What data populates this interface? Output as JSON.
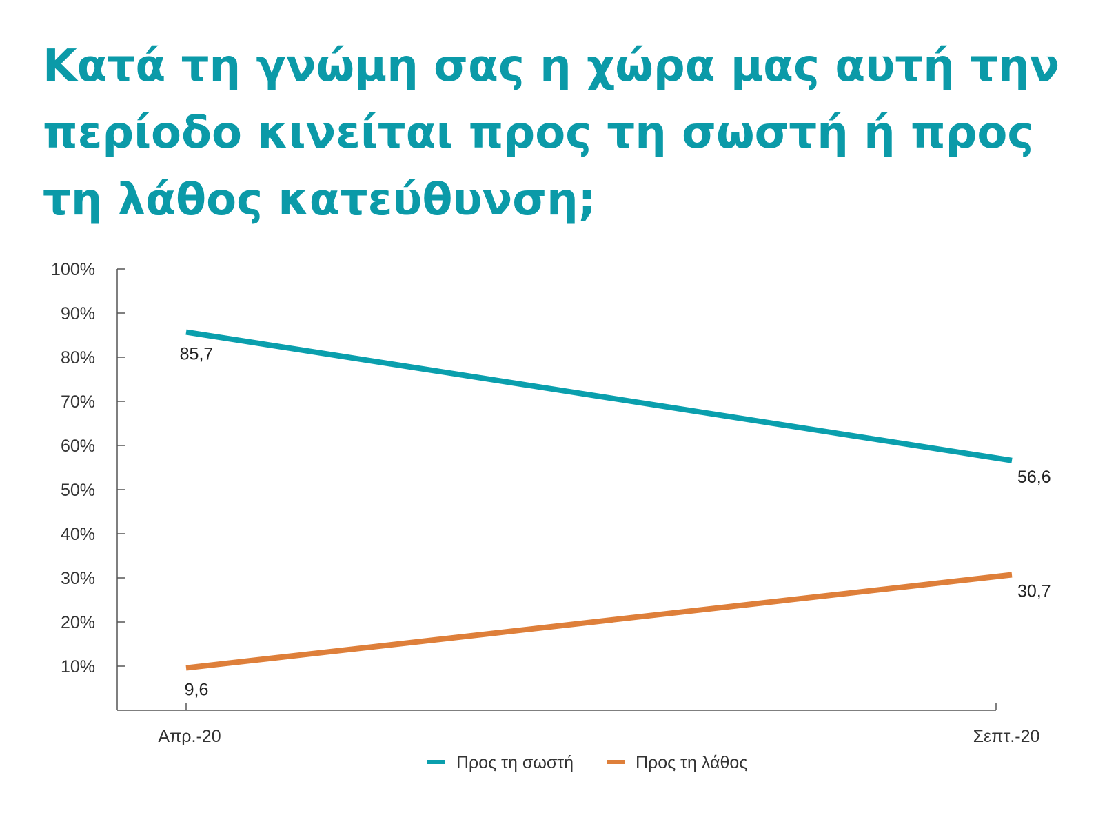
{
  "title": "Κατά τη γνώμη σας η χώρα μας αυτή την περίοδο κινείται προς τη σωστή ή προς τη λάθος κατεύθυνση;",
  "chart_data": {
    "type": "line",
    "categories": [
      "Απρ.-20",
      "Σεπτ.-20"
    ],
    "series": [
      {
        "name": "Προς τη σωστή",
        "color": "#0a9fad",
        "values": [
          85.7,
          56.6
        ],
        "labels": [
          "85,7",
          "56,6"
        ]
      },
      {
        "name": "Προς τη λάθος",
        "color": "#de7f3a",
        "values": [
          9.6,
          30.7
        ],
        "labels": [
          "9,6",
          "30,7"
        ]
      }
    ],
    "y_ticks": [
      "10%",
      "20%",
      "30%",
      "40%",
      "50%",
      "60%",
      "70%",
      "80%",
      "90%",
      "100%"
    ],
    "ylim": [
      0,
      100
    ],
    "legend_position": "bottom",
    "grid": false
  }
}
